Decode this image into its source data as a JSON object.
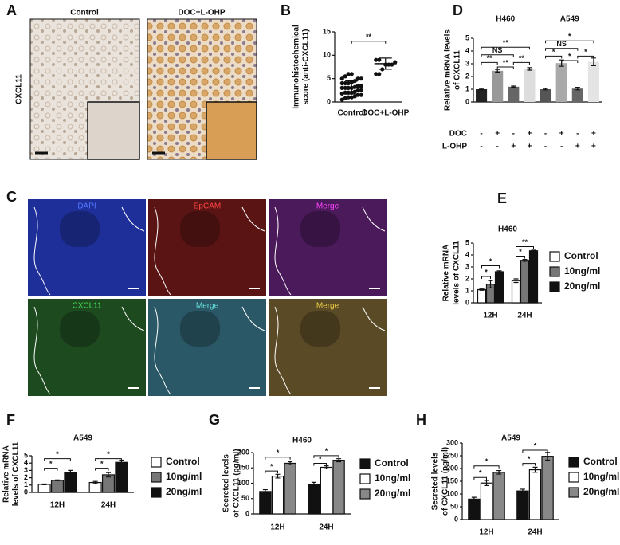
{
  "panels": {
    "A": {
      "letter": "A",
      "columns": [
        "Control",
        "DOC+L-OHP"
      ],
      "row": "CXCL11"
    },
    "C": {
      "letter": "C",
      "labels": [
        "DAPI",
        "EpCAM",
        "Merge",
        "CXCL11",
        "Merge",
        "Merge"
      ]
    }
  },
  "chart_data": [
    {
      "type": "dot",
      "letter": "B",
      "ylabel": [
        "Immunohistochemical",
        "score (anti-CXCL11)"
      ],
      "categories": [
        "Control",
        "DOC+L-OHP"
      ],
      "points": [
        [
          0.5,
          0.8,
          1,
          1,
          1.2,
          1.5,
          1.5,
          1.8,
          2,
          2,
          2,
          2.2,
          2.5,
          2.5,
          3,
          3,
          3,
          3,
          3.2,
          3.5,
          3.5,
          4,
          4,
          4,
          4.2,
          4.5,
          5,
          5,
          5,
          5.5,
          6,
          6
        ],
        [
          6,
          6,
          7,
          8,
          8,
          8,
          8.5,
          9,
          9
        ]
      ],
      "means": [
        3.1,
        8.2
      ],
      "errors": [
        1.4,
        1.2
      ],
      "ylim": [
        0,
        15
      ],
      "yticks": [
        0,
        5,
        10,
        15
      ],
      "annotations": [
        "**"
      ]
    },
    {
      "type": "bar",
      "letter": "D",
      "ylabel": [
        "Relative mRNA levels",
        "of CXCL11"
      ],
      "groups": [
        "H460",
        "A549"
      ],
      "values": [
        1.0,
        2.45,
        1.2,
        2.6,
        1.0,
        3.05,
        1.05,
        3.15
      ],
      "errors": [
        0.05,
        0.1,
        0.05,
        0.1,
        0.05,
        0.25,
        0.1,
        0.3
      ],
      "colors": [
        "#222222",
        "#999999",
        "#666666",
        "#dddddd",
        "#555555",
        "#aaaaaa",
        "#666666",
        "#e4e4e4"
      ],
      "table": [
        {
          "label": "DOC",
          "cells": [
            "-",
            "+",
            "-",
            "+",
            "-",
            "+",
            "-",
            "+"
          ]
        },
        {
          "label": "L-OHP",
          "cells": [
            "-",
            "-",
            "+",
            "+",
            "-",
            "-",
            "+",
            "+"
          ]
        }
      ],
      "ylim": [
        0,
        5
      ],
      "yticks": [
        0,
        1,
        2,
        3,
        4,
        5
      ],
      "annotations": [
        "**",
        "NS",
        "**",
        "**",
        "**",
        "*",
        "NS",
        "*",
        "*",
        "*"
      ]
    },
    {
      "type": "grouped_bar",
      "letter": "E",
      "title": "H460",
      "ylabel": [
        "Relative mRNA",
        "levels of CXCL11"
      ],
      "categories": [
        "12H",
        "24H"
      ],
      "series": [
        {
          "name": "Control",
          "color": "#ffffff",
          "values": [
            1.1,
            1.85
          ],
          "errors": [
            0.05,
            0.15
          ]
        },
        {
          "name": "10ng/ml",
          "color": "#777777",
          "values": [
            1.55,
            3.55
          ],
          "errors": [
            0.3,
            0.08
          ]
        },
        {
          "name": "20ng/ml",
          "color": "#111111",
          "values": [
            2.6,
            4.35
          ],
          "errors": [
            0.08,
            0.05
          ]
        }
      ],
      "ylim": [
        0,
        5
      ],
      "yticks": [
        0,
        1,
        2,
        3,
        4,
        5
      ],
      "annotations": [
        "*",
        "*",
        "*",
        "**"
      ]
    },
    {
      "type": "grouped_bar",
      "letter": "F",
      "title": "A549",
      "ylabel": [
        "Relative mRNA",
        "levels of CXCL11"
      ],
      "categories": [
        "12H",
        "24H"
      ],
      "series": [
        {
          "name": "Control",
          "color": "#ffffff",
          "values": [
            1.1,
            1.35
          ],
          "errors": [
            0.05,
            0.15
          ]
        },
        {
          "name": "10ng/ml",
          "color": "#777777",
          "values": [
            1.65,
            2.4
          ],
          "errors": [
            0.05,
            0.3
          ]
        },
        {
          "name": "20ng/ml",
          "color": "#111111",
          "values": [
            2.7,
            4.1
          ],
          "errors": [
            0.3,
            0.3
          ]
        }
      ],
      "ylim": [
        0,
        5
      ],
      "yticks": [
        0,
        1,
        2,
        3,
        4,
        5
      ],
      "annotations": [
        "*",
        "*",
        "*",
        "*"
      ]
    },
    {
      "type": "grouped_bar",
      "letter": "G",
      "title": "H460",
      "ylabel": [
        "Secreted levels",
        "of CXCL11 (pg/ml)"
      ],
      "categories": [
        "12H",
        "24H"
      ],
      "series": [
        {
          "name": "Control",
          "color": "#111111",
          "values": [
            73,
            97
          ],
          "errors": [
            6,
            6
          ]
        },
        {
          "name": "10ng/ml",
          "color": "#ffffff",
          "values": [
            123,
            152
          ],
          "errors": [
            6,
            5
          ]
        },
        {
          "name": "20ng/ml",
          "color": "#888888",
          "values": [
            165,
            175
          ],
          "errors": [
            5,
            5
          ]
        }
      ],
      "ylim": [
        0,
        200
      ],
      "yticks": [
        0,
        50,
        100,
        150,
        200
      ],
      "annotations": [
        "*",
        "*",
        "*",
        "*"
      ]
    },
    {
      "type": "grouped_bar",
      "letter": "H",
      "title": "A549",
      "ylabel": [
        "Secreted levels",
        "of CXCL11 (pg/ml)"
      ],
      "categories": [
        "12H",
        "24H"
      ],
      "series": [
        {
          "name": "Control",
          "color": "#111111",
          "values": [
            80,
            112
          ],
          "errors": [
            7,
            7
          ]
        },
        {
          "name": "10ng/ml",
          "color": "#ffffff",
          "values": [
            143,
            195
          ],
          "errors": [
            10,
            10
          ]
        },
        {
          "name": "20ng/ml",
          "color": "#888888",
          "values": [
            185,
            248
          ],
          "errors": [
            7,
            15
          ]
        }
      ],
      "ylim": [
        0,
        300
      ],
      "yticks": [
        0,
        50,
        100,
        150,
        200,
        250,
        300
      ],
      "annotations": [
        "*",
        "*",
        "*",
        "*"
      ]
    }
  ]
}
